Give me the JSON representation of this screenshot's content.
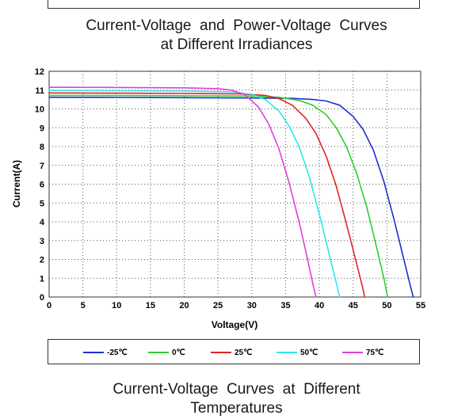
{
  "captions": {
    "top_line1": "Current-Voltage  and  Power-Voltage  Curves",
    "top_line2": "at Different Irradiances",
    "bottom_line1": "Current-Voltage  Curves  at  Different",
    "bottom_line2": "Temperatures"
  },
  "colors": {
    "-25": "#1f2fd0",
    "0": "#2ccf2c",
    "25": "#e02424",
    "50": "#33e6ea",
    "75": "#e23de0"
  },
  "chart_data": {
    "type": "line",
    "title": "",
    "xlabel": "Voltage(V)",
    "ylabel": "Current(A)",
    "xlim": [
      0,
      55
    ],
    "ylim": [
      0,
      12
    ],
    "xticks": [
      0,
      5,
      10,
      15,
      20,
      25,
      30,
      35,
      40,
      45,
      50,
      55
    ],
    "yticks": [
      0,
      1,
      2,
      3,
      4,
      5,
      6,
      7,
      8,
      9,
      10,
      11,
      12
    ],
    "grid": true,
    "legend_position": "bottom",
    "series": [
      {
        "name": "-25℃",
        "color": "#1f2fd0",
        "points": [
          [
            0,
            10.62
          ],
          [
            10,
            10.61
          ],
          [
            20,
            10.6
          ],
          [
            30,
            10.58
          ],
          [
            36,
            10.56
          ],
          [
            39,
            10.5
          ],
          [
            41,
            10.42
          ],
          [
            43,
            10.2
          ],
          [
            45,
            9.6
          ],
          [
            46.5,
            8.9
          ],
          [
            48,
            7.8
          ],
          [
            49.5,
            6.2
          ],
          [
            51,
            4.2
          ],
          [
            52.5,
            2.0
          ],
          [
            53.5,
            0.55
          ],
          [
            53.9,
            0
          ]
        ]
      },
      {
        "name": "0℃",
        "color": "#2ccf2c",
        "points": [
          [
            0,
            10.72
          ],
          [
            10,
            10.71
          ],
          [
            20,
            10.7
          ],
          [
            30,
            10.68
          ],
          [
            34,
            10.62
          ],
          [
            37,
            10.45
          ],
          [
            39,
            10.2
          ],
          [
            41,
            9.7
          ],
          [
            42.5,
            9.0
          ],
          [
            44,
            8.0
          ],
          [
            45.5,
            6.6
          ],
          [
            47,
            4.8
          ],
          [
            48.5,
            2.6
          ],
          [
            49.6,
            0.9
          ],
          [
            50.1,
            0
          ]
        ]
      },
      {
        "name": "25℃",
        "color": "#e02424",
        "points": [
          [
            0,
            10.85
          ],
          [
            10,
            10.84
          ],
          [
            20,
            10.82
          ],
          [
            28,
            10.8
          ],
          [
            32,
            10.72
          ],
          [
            34,
            10.55
          ],
          [
            36,
            10.2
          ],
          [
            38,
            9.5
          ],
          [
            39.5,
            8.7
          ],
          [
            41,
            7.5
          ],
          [
            42.5,
            5.9
          ],
          [
            44,
            3.9
          ],
          [
            45.5,
            1.8
          ],
          [
            46.4,
            0.5
          ],
          [
            46.7,
            0
          ]
        ]
      },
      {
        "name": "50℃",
        "color": "#33e6ea",
        "points": [
          [
            0,
            10.98
          ],
          [
            10,
            10.97
          ],
          [
            20,
            10.95
          ],
          [
            27,
            10.9
          ],
          [
            30,
            10.78
          ],
          [
            32,
            10.5
          ],
          [
            34,
            9.9
          ],
          [
            35.5,
            9.1
          ],
          [
            37,
            8.0
          ],
          [
            38.5,
            6.4
          ],
          [
            40,
            4.4
          ],
          [
            41.5,
            2.2
          ],
          [
            42.6,
            0.6
          ],
          [
            43,
            0
          ]
        ]
      },
      {
        "name": "75℃",
        "color": "#e23de0",
        "points": [
          [
            0,
            11.15
          ],
          [
            10,
            11.14
          ],
          [
            20,
            11.12
          ],
          [
            25,
            11.08
          ],
          [
            27,
            11.0
          ],
          [
            29,
            10.75
          ],
          [
            31,
            10.1
          ],
          [
            32.5,
            9.2
          ],
          [
            34,
            7.9
          ],
          [
            35.5,
            6.1
          ],
          [
            37,
            4.0
          ],
          [
            38.2,
            2.1
          ],
          [
            39.1,
            0.6
          ],
          [
            39.5,
            0
          ]
        ]
      }
    ]
  }
}
